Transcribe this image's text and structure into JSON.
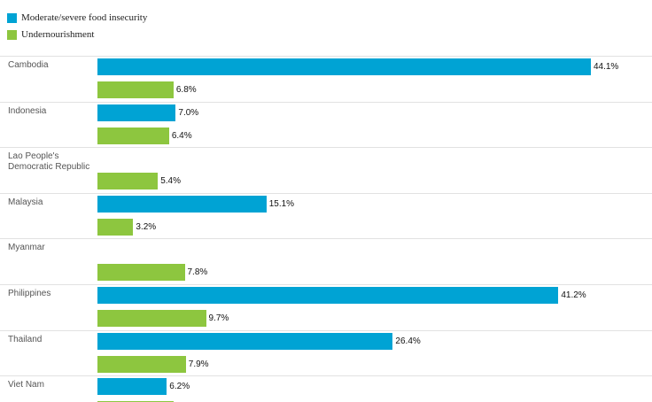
{
  "chart_data": {
    "type": "bar",
    "orientation": "horizontal",
    "categories": [
      "Cambodia",
      "Indonesia",
      "Lao People's Democratic Republic",
      "Malaysia",
      "Myanmar",
      "Philippines",
      "Thailand",
      "Viet Nam"
    ],
    "series": [
      {
        "name": "Moderate/severe food insecurity",
        "color": "#00a3d4",
        "values": [
          44.1,
          7.0,
          null,
          15.1,
          null,
          41.2,
          26.4,
          6.2
        ],
        "value_labels": [
          "44.1%",
          "7.0%",
          null,
          "15.1%",
          null,
          "41.2%",
          "26.4%",
          "6.2%"
        ]
      },
      {
        "name": "Undernourishment",
        "color": "#8dc63f",
        "values": [
          6.8,
          6.4,
          5.4,
          3.2,
          7.8,
          9.7,
          7.9,
          6.8
        ],
        "value_labels": [
          "6.8%",
          "6.4%",
          "5.4%",
          "3.2%",
          "7.8%",
          "9.7%",
          "7.9%",
          null
        ]
      }
    ]
  }
}
